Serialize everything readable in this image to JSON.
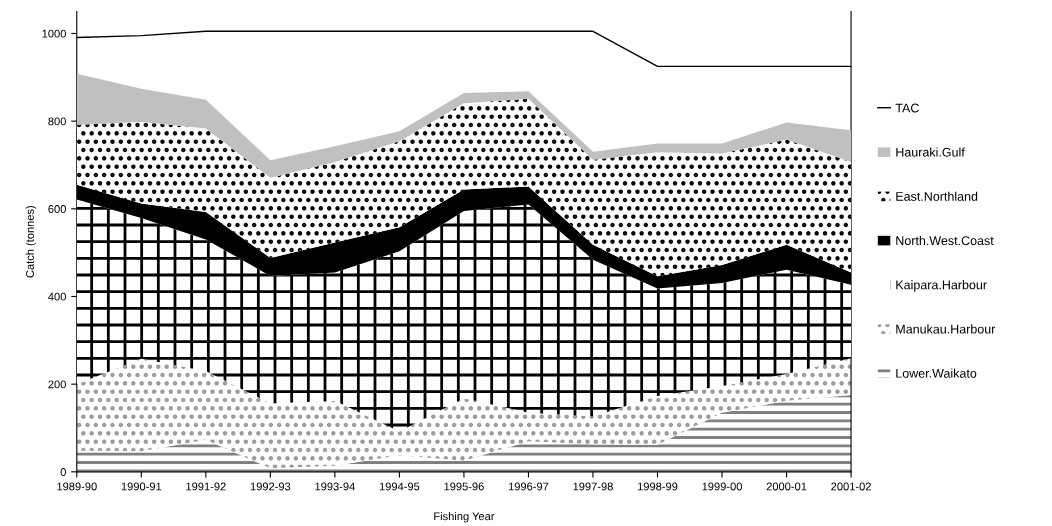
{
  "chart_data": {
    "type": "area",
    "stacked": true,
    "xlabel": "Fishing Year",
    "ylabel": "Catch (tonnes)",
    "categories": [
      "1989-90",
      "1990-91",
      "1991-92",
      "1992-93",
      "1993-94",
      "1994-95",
      "1995-96",
      "1996-97",
      "1997-98",
      "1998-99",
      "1999-00",
      "2000-01",
      "2001-02"
    ],
    "series": [
      {
        "name": "Lower.Waikato",
        "color": "#ffffff",
        "values": [
          48,
          47,
          73,
          8,
          14,
          38,
          25,
          70,
          63,
          62,
          135,
          162,
          175
        ]
      },
      {
        "name": "Manukau.Harbour",
        "color": "#ffffff",
        "values": [
          152,
          211,
          157,
          148,
          148,
          54,
          143,
          65,
          63,
          111,
          61,
          61,
          84
        ]
      },
      {
        "name": "Kaipara.Harbour",
        "color": "#ffffff",
        "values": [
          421,
          321,
          300,
          291,
          293,
          411,
          427,
          475,
          358,
          245,
          235,
          238,
          168
        ]
      },
      {
        "name": "North.West.Coast",
        "color": "#000000",
        "values": [
          34,
          33,
          63,
          41,
          68,
          55,
          49,
          41,
          34,
          28,
          41,
          57,
          28
        ]
      },
      {
        "name": "East.Northland",
        "color": "#ffffff",
        "values": [
          137,
          186,
          190,
          183,
          184,
          196,
          197,
          200,
          194,
          283,
          254,
          240,
          252
        ]
      },
      {
        "name": "Hauraki.Gulf",
        "color": "#c0c0c0",
        "values": [
          116,
          76,
          66,
          40,
          36,
          23,
          23,
          17,
          18,
          20,
          23,
          39,
          72
        ]
      },
      {
        "name": "TAC",
        "type": "line",
        "color": "#000000",
        "values": [
          991,
          995,
          1005,
          1005,
          1005,
          1005,
          1005,
          1005,
          1005,
          925,
          925,
          925,
          925
        ]
      }
    ],
    "ylim": [
      0,
      1050
    ],
    "yticks": [
      0,
      200,
      400,
      600,
      800,
      1000
    ],
    "legend": "right",
    "grid": false
  }
}
